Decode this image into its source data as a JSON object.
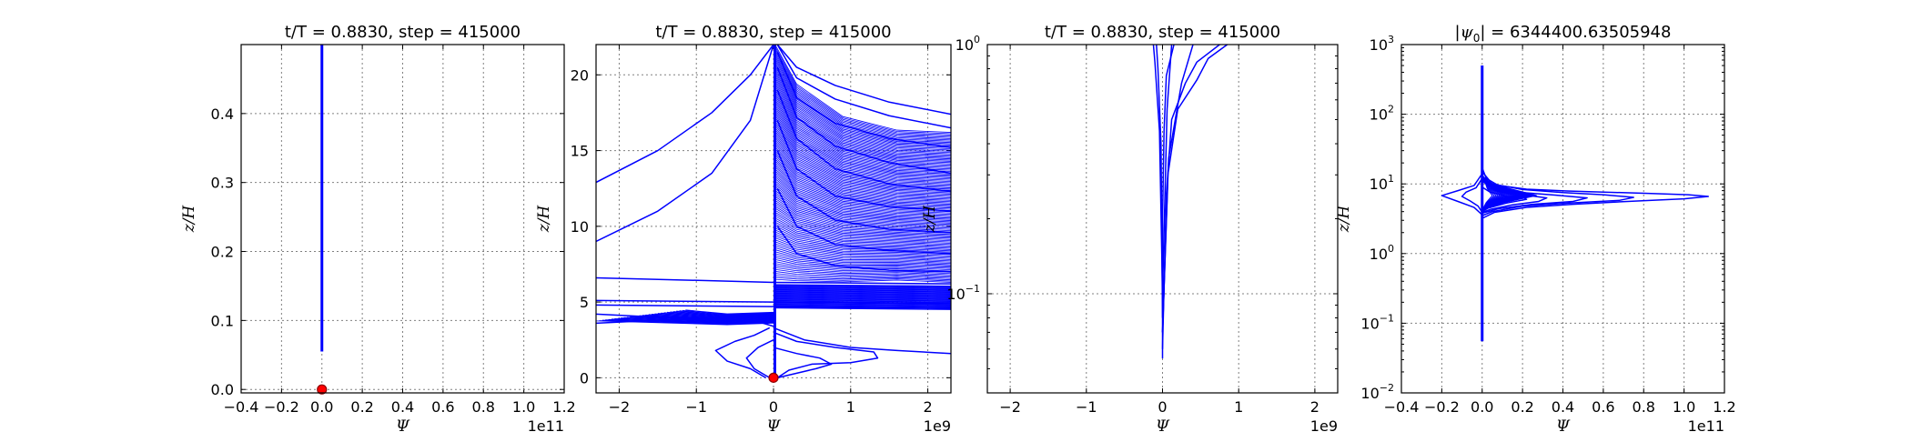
{
  "colors": {
    "line": "#0000ff",
    "marker": "#ff0000",
    "marker_edge": "#8b0000",
    "grid": "#808080",
    "axes": "#000000"
  },
  "chart_data": [
    {
      "type": "line",
      "title": "t/T = 0.8830, step = 415000",
      "xlabel": "Ψ",
      "ylabel": "z/H",
      "x_offset_label": "1e11",
      "xlim": [
        -0.4,
        1.2
      ],
      "ylim": [
        -0.005,
        0.5
      ],
      "xscale": "linear",
      "yscale": "linear",
      "grid": true,
      "xticks": [
        "−0.4",
        "−0.2",
        "0.0",
        "0.2",
        "0.4",
        "0.6",
        "0.8",
        "1.0",
        "1.2"
      ],
      "yticks": [
        "0.0",
        "0.1",
        "0.2",
        "0.3",
        "0.4"
      ],
      "series": [
        {
          "x": [
            0.0,
            0.0
          ],
          "y": [
            0.055,
            0.5
          ]
        }
      ],
      "markers": [
        {
          "x": 0.0,
          "y": 0.0
        }
      ]
    },
    {
      "type": "line",
      "title": "t/T = 0.8830, step = 415000",
      "xlabel": "Ψ",
      "ylabel": "z/H",
      "x_offset_label": "1e9",
      "xlim": [
        -2.3,
        2.3
      ],
      "ylim": [
        -1,
        22
      ],
      "xscale": "linear",
      "yscale": "linear",
      "grid": true,
      "xticks": [
        "−2",
        "−1",
        "0",
        "1",
        "2"
      ],
      "yticks": [
        "0",
        "5",
        "10",
        "15",
        "20"
      ],
      "series": [
        {
          "x": [
            -2.3,
            -1.5,
            -0.8,
            -0.3,
            0.0
          ],
          "y": [
            12.9,
            15.0,
            17.5,
            20.0,
            22.0
          ]
        },
        {
          "x": [
            -2.3,
            -1.5,
            -0.8,
            -0.3,
            0.0
          ],
          "y": [
            9.0,
            11.0,
            13.5,
            17.0,
            22.0
          ]
        },
        {
          "x": [
            0.05,
            0.3,
            0.8,
            1.5,
            2.3
          ],
          "y": [
            22.0,
            20.5,
            19.3,
            18.2,
            17.4
          ]
        },
        {
          "x": [
            0.05,
            0.3,
            0.8,
            1.5,
            2.3
          ],
          "y": [
            22.0,
            19.8,
            18.4,
            17.3,
            16.5
          ]
        },
        {
          "x": [
            0.05,
            0.3,
            0.8,
            1.5,
            2.3
          ],
          "y": [
            21.5,
            18.5,
            16.8,
            15.8,
            15.2
          ]
        },
        {
          "x": [
            0.05,
            0.3,
            0.8,
            1.5,
            2.3
          ],
          "y": [
            20.5,
            17.2,
            15.3,
            14.2,
            13.5
          ]
        },
        {
          "x": [
            0.05,
            0.3,
            0.8,
            1.5,
            2.3
          ],
          "y": [
            19.0,
            15.8,
            13.8,
            12.8,
            12.3
          ]
        },
        {
          "x": [
            0.05,
            0.3,
            0.8,
            1.5,
            2.3
          ],
          "y": [
            17.0,
            13.8,
            12.0,
            11.3,
            11.0
          ]
        },
        {
          "x": [
            0.05,
            0.3,
            0.8,
            1.5,
            2.3
          ],
          "y": [
            15.0,
            12.0,
            10.4,
            9.8,
            9.6
          ]
        },
        {
          "x": [
            0.05,
            0.3,
            0.8,
            1.5,
            2.3
          ],
          "y": [
            12.5,
            10.0,
            8.8,
            8.4,
            8.2
          ]
        },
        {
          "x": [
            0.05,
            0.3,
            0.8,
            1.5,
            2.3
          ],
          "y": [
            10.0,
            8.2,
            7.4,
            7.1,
            7.0
          ]
        },
        {
          "x": [
            -2.3,
            0.0,
            2.3
          ],
          "y": [
            6.6,
            6.3,
            6.2
          ]
        },
        {
          "x": [
            -2.3,
            0.0,
            2.3
          ],
          "y": [
            5.1,
            5.0,
            4.9
          ]
        },
        {
          "x": [
            -2.3,
            0.0,
            2.3
          ],
          "y": [
            4.8,
            4.7,
            4.6
          ]
        },
        {
          "x": [
            -2.3,
            -1.5,
            -0.8,
            -0.2,
            0.0
          ],
          "y": [
            4.2,
            4.0,
            3.9,
            3.7,
            3.4
          ]
        },
        {
          "x": [
            -2.3,
            -1.5,
            -0.8,
            -0.2,
            0.0
          ],
          "y": [
            3.6,
            3.8,
            3.9,
            4.1,
            4.3
          ]
        },
        {
          "x": [
            0.0,
            0.3,
            0.8,
            1.3,
            1.35,
            1.0,
            0.5,
            0.2,
            0.05
          ],
          "y": [
            3.0,
            2.4,
            2.0,
            1.7,
            1.3,
            1.0,
            0.9,
            0.5,
            0.0
          ]
        },
        {
          "x": [
            0.0,
            0.3,
            0.6,
            0.75,
            0.55,
            0.3,
            0.05
          ],
          "y": [
            2.0,
            1.6,
            1.3,
            0.9,
            0.6,
            0.3,
            0.0
          ]
        },
        {
          "x": [
            0.0,
            0.4,
            1.0,
            1.6,
            2.3
          ],
          "y": [
            3.3,
            2.5,
            2.0,
            1.8,
            1.6
          ]
        },
        {
          "x": [
            0.0,
            -0.2,
            -0.35,
            -0.25,
            -0.05
          ],
          "y": [
            2.5,
            2.0,
            1.3,
            0.6,
            0.0
          ]
        },
        {
          "x": [
            -0.05,
            -0.25,
            -0.5,
            -0.75,
            -0.6,
            -0.3,
            -0.1
          ],
          "y": [
            3.3,
            2.8,
            2.4,
            1.8,
            1.1,
            0.6,
            0.0
          ]
        }
      ],
      "markers": [
        {
          "x": 0.0,
          "y": 0.0
        }
      ]
    },
    {
      "type": "line",
      "title": "t/T = 0.8830, step = 415000",
      "xlabel": "Ψ",
      "ylabel": "z/H",
      "x_offset_label": "1e9",
      "xlim": [
        -2.3,
        2.3
      ],
      "ylim": [
        0.04,
        1.0
      ],
      "xscale": "linear",
      "yscale": "log",
      "grid": true,
      "xticks": [
        "−2",
        "−1",
        "0",
        "1",
        "2"
      ],
      "yticks": [
        {
          "value": 1.0,
          "base": "10",
          "exp": "0"
        },
        {
          "value": 0.1,
          "base": "10",
          "exp": "−1"
        }
      ],
      "series": [
        {
          "x": [
            0.0,
            0.0,
            0.02,
            0.05,
            0.15
          ],
          "y": [
            0.055,
            0.2,
            0.45,
            0.75,
            1.0
          ]
        },
        {
          "x": [
            0.0,
            0.05,
            0.12,
            0.3,
            0.45,
            0.75
          ],
          "y": [
            0.06,
            0.25,
            0.5,
            0.7,
            0.85,
            1.0
          ]
        },
        {
          "x": [
            0.0,
            0.07,
            0.2,
            0.45,
            0.6,
            0.85
          ],
          "y": [
            0.07,
            0.3,
            0.55,
            0.72,
            0.88,
            1.0
          ]
        },
        {
          "x": [
            0.0,
            0.08,
            0.25,
            0.4
          ],
          "y": [
            0.07,
            0.35,
            0.7,
            1.0
          ]
        },
        {
          "x": [
            0.0,
            -0.02,
            -0.06,
            -0.08
          ],
          "y": [
            0.08,
            0.4,
            0.8,
            1.0
          ]
        },
        {
          "x": [
            0.0,
            -0.04,
            -0.1,
            -0.12
          ],
          "y": [
            0.1,
            0.45,
            0.85,
            1.0
          ]
        },
        {
          "x": [
            0.0,
            0.06,
            0.12
          ],
          "y": [
            0.1,
            0.55,
            1.0
          ]
        }
      ],
      "markers": []
    },
    {
      "type": "line",
      "title": "",
      "title_math": {
        "psi_symbol": "ψ",
        "subscript": "0",
        "value": "6344400.63505948"
      },
      "xlabel": "Ψ",
      "ylabel": "z/H",
      "x_offset_label": "1e11",
      "xlim": [
        -0.4,
        1.2
      ],
      "ylim": [
        0.01,
        1000
      ],
      "xscale": "linear",
      "yscale": "log",
      "grid": true,
      "xticks": [
        "−0.4",
        "−0.2",
        "0.0",
        "0.2",
        "0.4",
        "0.6",
        "0.8",
        "1.0",
        "1.2"
      ],
      "yticks": [
        {
          "value": 1000,
          "base": "10",
          "exp": "3"
        },
        {
          "value": 100,
          "base": "10",
          "exp": "2"
        },
        {
          "value": 10,
          "base": "10",
          "exp": "1"
        },
        {
          "value": 1,
          "base": "10",
          "exp": "0"
        },
        {
          "value": 0.1,
          "base": "10",
          "exp": "−1"
        },
        {
          "value": 0.01,
          "base": "10",
          "exp": "−2"
        }
      ],
      "series": [
        {
          "x": [
            0.0,
            0.0
          ],
          "y": [
            0.055,
            500
          ]
        },
        {
          "x": [
            0.0,
            0.02,
            0.08,
            0.22,
            0.42,
            0.62,
            0.82,
            1.02,
            1.12,
            1.0,
            0.72,
            0.45,
            0.22,
            0.06,
            0.0
          ],
          "y": [
            17,
            12,
            9.5,
            8.4,
            7.9,
            7.6,
            7.3,
            7.0,
            6.6,
            6.1,
            5.6,
            5.1,
            4.6,
            3.9,
            3.2
          ]
        },
        {
          "x": [
            0.0,
            0.05,
            0.2,
            0.4,
            0.6,
            0.75,
            0.68,
            0.42,
            0.2,
            0.05,
            0.0
          ],
          "y": [
            15,
            10,
            8.3,
            7.5,
            7.0,
            6.4,
            5.8,
            5.3,
            4.8,
            4.0,
            3.5
          ]
        },
        {
          "x": [
            0.0,
            0.06,
            0.2,
            0.36,
            0.52,
            0.45,
            0.25,
            0.08,
            0.0
          ],
          "y": [
            13,
            9.2,
            7.5,
            6.9,
            6.3,
            5.6,
            5.1,
            4.4,
            3.8
          ]
        },
        {
          "x": [
            0.0,
            0.08,
            0.2,
            0.32,
            0.28,
            0.15,
            0.04,
            0.0
          ],
          "y": [
            12,
            8.5,
            7.0,
            6.3,
            5.6,
            5.0,
            4.3,
            3.9
          ]
        },
        {
          "x": [
            0.0,
            0.07,
            0.18,
            0.22,
            0.12,
            0.03,
            0.0
          ],
          "y": [
            11,
            8.0,
            6.8,
            6.0,
            5.3,
            4.5,
            4.0
          ]
        },
        {
          "x": [
            0.0,
            -0.04,
            -0.12,
            -0.2,
            -0.12,
            -0.04,
            0.0
          ],
          "y": [
            14,
            9.5,
            8.0,
            6.8,
            5.6,
            4.6,
            3.6
          ]
        },
        {
          "x": [
            0.0,
            -0.03,
            -0.08,
            -0.1,
            -0.06,
            -0.02,
            0.0
          ],
          "y": [
            12,
            8.8,
            7.6,
            6.6,
            5.7,
            4.8,
            3.9
          ]
        },
        {
          "x": [
            0.0,
            0.04,
            0.1,
            0.14,
            0.08,
            0.02,
            0.0
          ],
          "y": [
            9.0,
            7.6,
            6.9,
            6.3,
            5.6,
            4.9,
            4.3
          ]
        }
      ],
      "markers": []
    }
  ]
}
